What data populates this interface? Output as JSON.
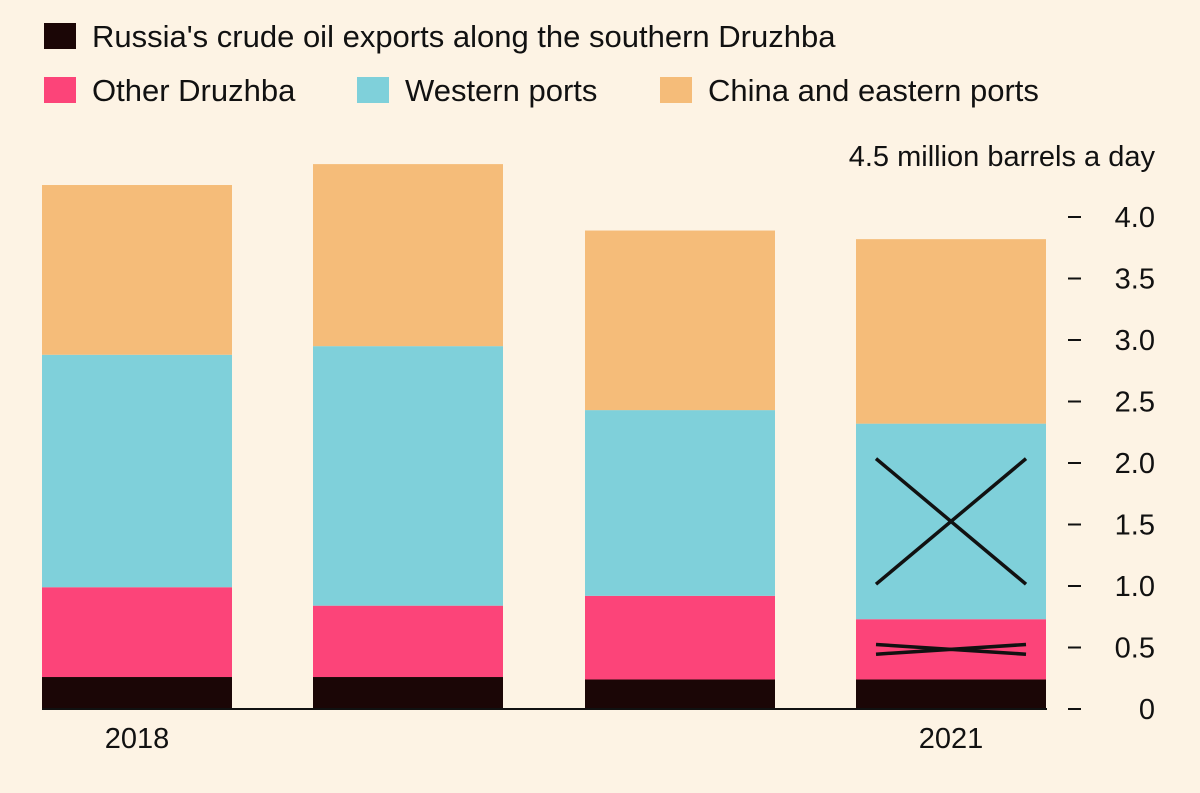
{
  "chart_data": {
    "type": "bar",
    "stacked": true,
    "x_labels": [
      "2018",
      "",
      "",
      "2021"
    ],
    "unit_label": "4.5 million barrels a day",
    "ylim": [
      0,
      4.5
    ],
    "yticks": [
      "4.0",
      "3.5",
      "3.0",
      "2.5",
      "2.0",
      "1.5",
      "1.0",
      "0.5",
      "0"
    ],
    "ytick_values": [
      4.0,
      3.5,
      3.0,
      2.5,
      2.0,
      1.5,
      1.0,
      0.5,
      0
    ],
    "series": [
      {
        "name": "Russia's crude oil exports along the southern Druzhba",
        "color": "#1b0606",
        "values": [
          0.26,
          0.26,
          0.24,
          0.24
        ]
      },
      {
        "name": "Other Druzhba",
        "color": "#fc4479",
        "values": [
          0.73,
          0.58,
          0.68,
          0.49
        ]
      },
      {
        "name": "Western ports",
        "color": "#7fd0da",
        "values": [
          1.89,
          2.11,
          1.51,
          1.59
        ]
      },
      {
        "name": "China and eastern ports",
        "color": "#f5bc79",
        "values": [
          1.38,
          1.48,
          1.46,
          1.5
        ]
      }
    ],
    "crossed_out": [
      {
        "bar_index": 3,
        "series": "Other Druzhba"
      },
      {
        "bar_index": 3,
        "series": "Western ports"
      }
    ],
    "legend_position": "top-left",
    "grid": false
  }
}
